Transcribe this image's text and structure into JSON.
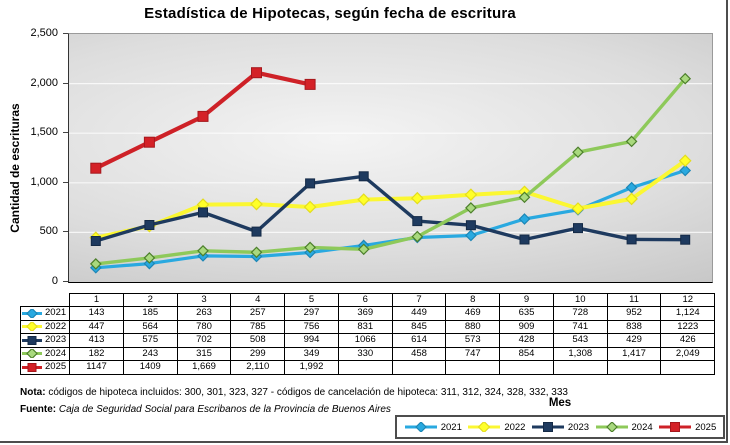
{
  "chart_data": {
    "type": "line",
    "title": "Estadística de Hipotecas, según fecha de escritura",
    "xlabel": "Mes",
    "ylabel": "Cantidad de escrituras",
    "ylim": [
      0,
      2500
    ],
    "yticks": [
      {
        "value": 0,
        "label": "0"
      },
      {
        "value": 500,
        "label": "500"
      },
      {
        "value": 1000,
        "label": "1,000"
      },
      {
        "value": 1500,
        "label": "1,500"
      },
      {
        "value": 2000,
        "label": "2,000"
      },
      {
        "value": 2500,
        "label": "2,500"
      }
    ],
    "grid": true,
    "legend_position": "bottom",
    "categories": [
      "1",
      "2",
      "3",
      "4",
      "5",
      "6",
      "7",
      "8",
      "9",
      "10",
      "11",
      "12"
    ],
    "series": [
      {
        "name": "2021",
        "color": "#29A9E0",
        "marker": "diamond",
        "marker_fill": "#29A9E0",
        "marker_stroke": "#1D86B5",
        "line_width": 3.2,
        "marker_size": 8,
        "values": [
          143,
          185,
          263,
          257,
          297,
          369,
          449,
          469,
          635,
          728,
          952,
          1124
        ],
        "table_display": [
          "143",
          "185",
          "263",
          "257",
          "297",
          "369",
          "449",
          "469",
          "635",
          "728",
          "952",
          "1,124"
        ]
      },
      {
        "name": "2022",
        "color": "#FBF732",
        "marker": "diamond",
        "marker_fill": "#FFFF29",
        "marker_stroke": "#E3DC1E",
        "line_width": 4,
        "marker_size": 9,
        "values": [
          447,
          564,
          780,
          785,
          756,
          831,
          845,
          880,
          909,
          741,
          838,
          1223
        ],
        "table_display": [
          "447",
          "564",
          "780",
          "785",
          "756",
          "831",
          "845",
          "880",
          "909",
          "741",
          "838",
          "1223"
        ]
      },
      {
        "name": "2023",
        "color": "#1E3A5F",
        "marker": "square",
        "marker_fill": "#1E3A5F",
        "marker_stroke": "#142A46",
        "line_width": 3.4,
        "marker_size": 9,
        "values": [
          413,
          575,
          702,
          508,
          994,
          1066,
          614,
          573,
          428,
          543,
          429,
          426
        ],
        "table_display": [
          "413",
          "575",
          "702",
          "508",
          "994",
          "1066",
          "614",
          "573",
          "428",
          "543",
          "429",
          "426"
        ]
      },
      {
        "name": "2024",
        "color": "#8EC95A",
        "marker": "diamond",
        "marker_fill": "#A9D97E",
        "marker_stroke": "#4C7F2B",
        "line_width": 3.4,
        "marker_size": 8,
        "values": [
          182,
          243,
          315,
          299,
          349,
          330,
          458,
          747,
          854,
          1308,
          1417,
          2049
        ],
        "table_display": [
          "182",
          "243",
          "315",
          "299",
          "349",
          "330",
          "458",
          "747",
          "854",
          "1,308",
          "1,417",
          "2,049"
        ]
      },
      {
        "name": "2025",
        "color": "#CE2127",
        "marker": "square",
        "marker_fill": "#D42127",
        "marker_stroke": "#A5171C",
        "line_width": 4.2,
        "marker_size": 10,
        "values": [
          1147,
          1409,
          1669,
          2110,
          1992,
          null,
          null,
          null,
          null,
          null,
          null,
          null
        ],
        "table_display": [
          "1147",
          "1409",
          "1,669",
          "2,110",
          "1,992",
          "",
          "",
          "",
          "",
          "",
          "",
          ""
        ]
      }
    ]
  },
  "notes": {
    "nota_label": "Nota:",
    "nota_text": "códigos de hipoteca incluidos: 300, 301, 323, 327 - códigos de cancelación de hipoteca: 311, 312, 324, 328, 332, 333",
    "fuente_label": "Fuente:",
    "fuente_text": "Caja de Seguridad Social para Escribanos de la Provincia de Buenos Aires"
  }
}
